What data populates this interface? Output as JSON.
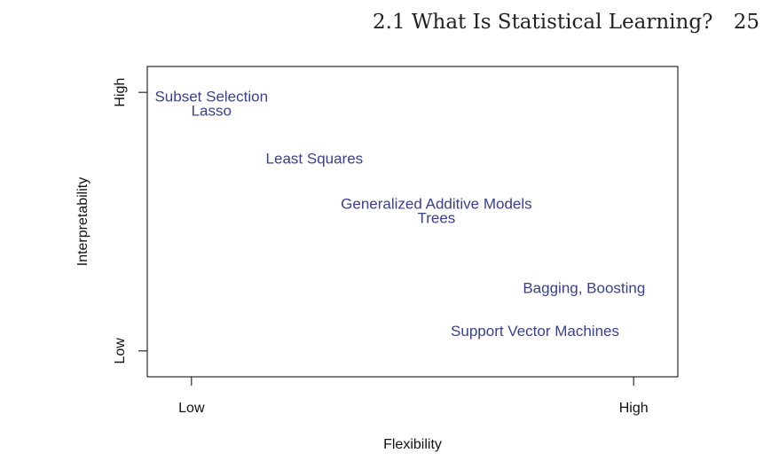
{
  "header": {
    "section_title": "2.1 What Is Statistical Learning?",
    "page_number": "25"
  },
  "chart_data": {
    "type": "scatter",
    "title": "",
    "xlabel": "Flexibility",
    "ylabel": "Interpretability",
    "x_ticks": [
      {
        "value": 0,
        "label": "Low"
      },
      {
        "value": 1,
        "label": "High"
      }
    ],
    "y_ticks": [
      {
        "value": 0,
        "label": "Low"
      },
      {
        "value": 1,
        "label": "High"
      }
    ],
    "xlim": [
      -0.1,
      1.1
    ],
    "ylim": [
      -0.1,
      1.1
    ],
    "label_color": "#3a3f8f",
    "points": [
      {
        "label": "Subset Selection",
        "x": 0.045,
        "y": 0.98
      },
      {
        "label": "Lasso",
        "x": 0.045,
        "y": 0.925
      },
      {
        "label": "Least Squares",
        "x": 0.278,
        "y": 0.74
      },
      {
        "label": "Generalized Additive Models",
        "x": 0.554,
        "y": 0.565
      },
      {
        "label": "Trees",
        "x": 0.554,
        "y": 0.51
      },
      {
        "label": "Bagging, Boosting",
        "x": 0.888,
        "y": 0.24
      },
      {
        "label": "Support Vector Machines",
        "x": 0.777,
        "y": 0.073
      }
    ]
  }
}
